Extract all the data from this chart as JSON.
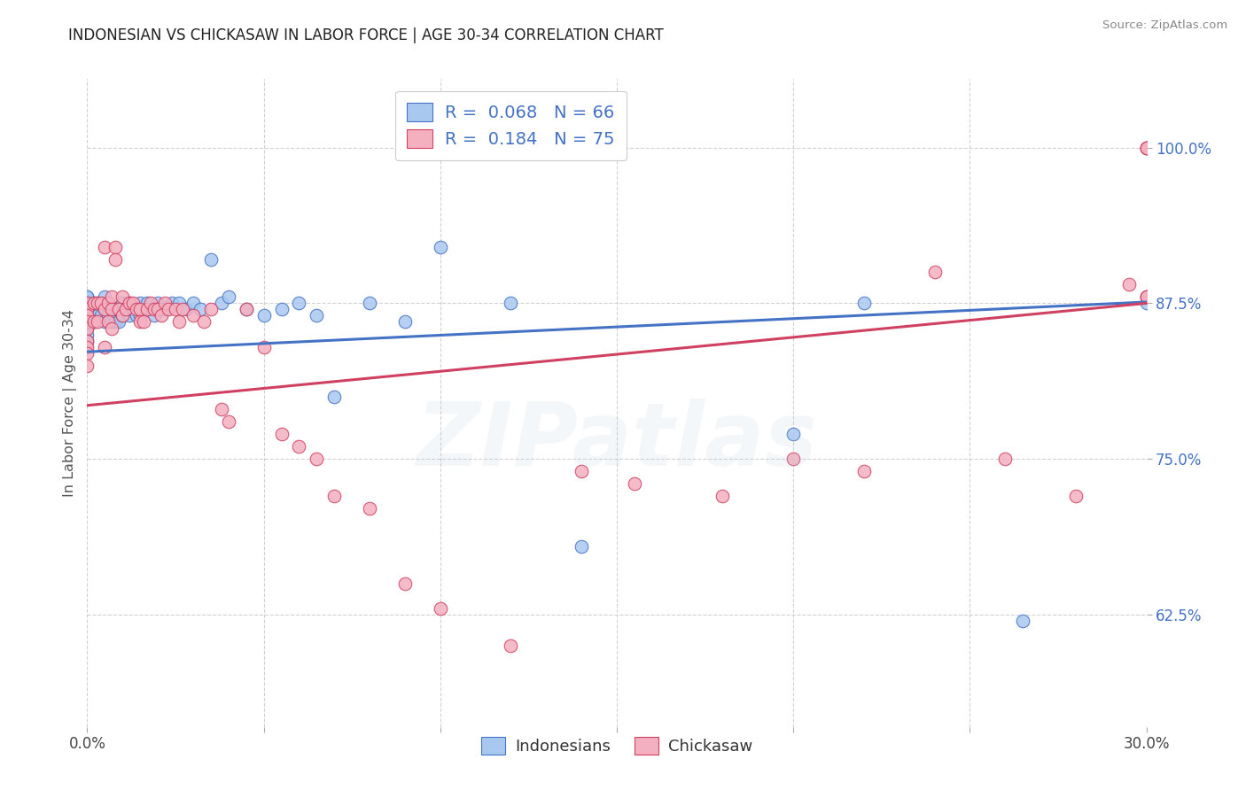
{
  "title": "INDONESIAN VS CHICKASAW IN LABOR FORCE | AGE 30-34 CORRELATION CHART",
  "source": "Source: ZipAtlas.com",
  "ylabel": "In Labor Force | Age 30-34",
  "xlim": [
    0.0,
    0.3
  ],
  "ylim": [
    0.535,
    1.055
  ],
  "xtick_pos": [
    0.0,
    0.05,
    0.1,
    0.15,
    0.2,
    0.25,
    0.3
  ],
  "xticklabels": [
    "0.0%",
    "",
    "",
    "",
    "",
    "",
    "30.0%"
  ],
  "ytick_positions": [
    0.625,
    0.75,
    0.875,
    1.0
  ],
  "ytick_labels": [
    "62.5%",
    "75.0%",
    "87.5%",
    "100.0%"
  ],
  "legend_r_blue": "0.068",
  "legend_n_blue": "66",
  "legend_r_pink": "0.184",
  "legend_n_pink": "75",
  "color_blue_fill": "#A8C8F0",
  "color_pink_fill": "#F5B0C0",
  "color_blue_line": "#4472C4",
  "color_pink_line": "#D04060",
  "color_text_blue": "#4472C4",
  "watermark_text": "ZIPatlas",
  "blue_line_x": [
    0.0,
    0.3
  ],
  "blue_line_y": [
    0.836,
    0.876
  ],
  "pink_line_x": [
    0.0,
    0.3
  ],
  "pink_line_y": [
    0.793,
    0.875
  ],
  "indonesians_x": [
    0.0,
    0.0,
    0.0,
    0.0,
    0.0,
    0.0,
    0.0,
    0.0,
    0.0,
    0.002,
    0.002,
    0.002,
    0.003,
    0.003,
    0.004,
    0.004,
    0.005,
    0.005,
    0.005,
    0.006,
    0.006,
    0.007,
    0.007,
    0.008,
    0.008,
    0.009,
    0.009,
    0.01,
    0.01,
    0.011,
    0.012,
    0.012,
    0.013,
    0.014,
    0.015,
    0.015,
    0.016,
    0.017,
    0.018,
    0.019,
    0.02,
    0.021,
    0.022,
    0.024,
    0.026,
    0.028,
    0.03,
    0.032,
    0.035,
    0.038,
    0.04,
    0.045,
    0.05,
    0.055,
    0.06,
    0.065,
    0.07,
    0.08,
    0.09,
    0.1,
    0.12,
    0.14,
    0.2,
    0.22,
    0.265,
    0.3
  ],
  "indonesians_y": [
    0.88,
    0.88,
    0.875,
    0.87,
    0.86,
    0.86,
    0.855,
    0.85,
    0.845,
    0.875,
    0.87,
    0.86,
    0.875,
    0.865,
    0.875,
    0.865,
    0.88,
    0.87,
    0.86,
    0.875,
    0.865,
    0.87,
    0.86,
    0.87,
    0.86,
    0.87,
    0.86,
    0.875,
    0.865,
    0.87,
    0.875,
    0.865,
    0.87,
    0.865,
    0.875,
    0.865,
    0.87,
    0.875,
    0.87,
    0.865,
    0.875,
    0.87,
    0.87,
    0.875,
    0.875,
    0.87,
    0.875,
    0.87,
    0.91,
    0.875,
    0.88,
    0.87,
    0.865,
    0.87,
    0.875,
    0.865,
    0.8,
    0.875,
    0.86,
    0.92,
    0.875,
    0.68,
    0.77,
    0.875,
    0.62,
    0.875
  ],
  "chickasaw_x": [
    0.0,
    0.0,
    0.0,
    0.0,
    0.0,
    0.0,
    0.0,
    0.0,
    0.0,
    0.002,
    0.002,
    0.003,
    0.003,
    0.004,
    0.005,
    0.005,
    0.005,
    0.006,
    0.006,
    0.007,
    0.007,
    0.007,
    0.008,
    0.008,
    0.009,
    0.01,
    0.01,
    0.011,
    0.012,
    0.013,
    0.014,
    0.015,
    0.015,
    0.016,
    0.017,
    0.018,
    0.019,
    0.02,
    0.021,
    0.022,
    0.023,
    0.025,
    0.026,
    0.027,
    0.03,
    0.033,
    0.035,
    0.038,
    0.04,
    0.045,
    0.05,
    0.055,
    0.06,
    0.065,
    0.07,
    0.08,
    0.09,
    0.1,
    0.12,
    0.14,
    0.155,
    0.18,
    0.2,
    0.22,
    0.24,
    0.26,
    0.28,
    0.295,
    0.3,
    0.3,
    0.3,
    0.3,
    0.3,
    0.3,
    0.3
  ],
  "chickasaw_y": [
    0.875,
    0.87,
    0.865,
    0.86,
    0.855,
    0.845,
    0.84,
    0.835,
    0.825,
    0.875,
    0.86,
    0.875,
    0.86,
    0.875,
    0.92,
    0.87,
    0.84,
    0.875,
    0.86,
    0.88,
    0.87,
    0.855,
    0.92,
    0.91,
    0.87,
    0.88,
    0.865,
    0.87,
    0.875,
    0.875,
    0.87,
    0.87,
    0.86,
    0.86,
    0.87,
    0.875,
    0.87,
    0.87,
    0.865,
    0.875,
    0.87,
    0.87,
    0.86,
    0.87,
    0.865,
    0.86,
    0.87,
    0.79,
    0.78,
    0.87,
    0.84,
    0.77,
    0.76,
    0.75,
    0.72,
    0.71,
    0.65,
    0.63,
    0.6,
    0.74,
    0.73,
    0.72,
    0.75,
    0.74,
    0.9,
    0.75,
    0.72,
    0.89,
    0.88,
    1.0,
    1.0,
    1.0,
    1.0,
    0.88,
    0.88
  ]
}
